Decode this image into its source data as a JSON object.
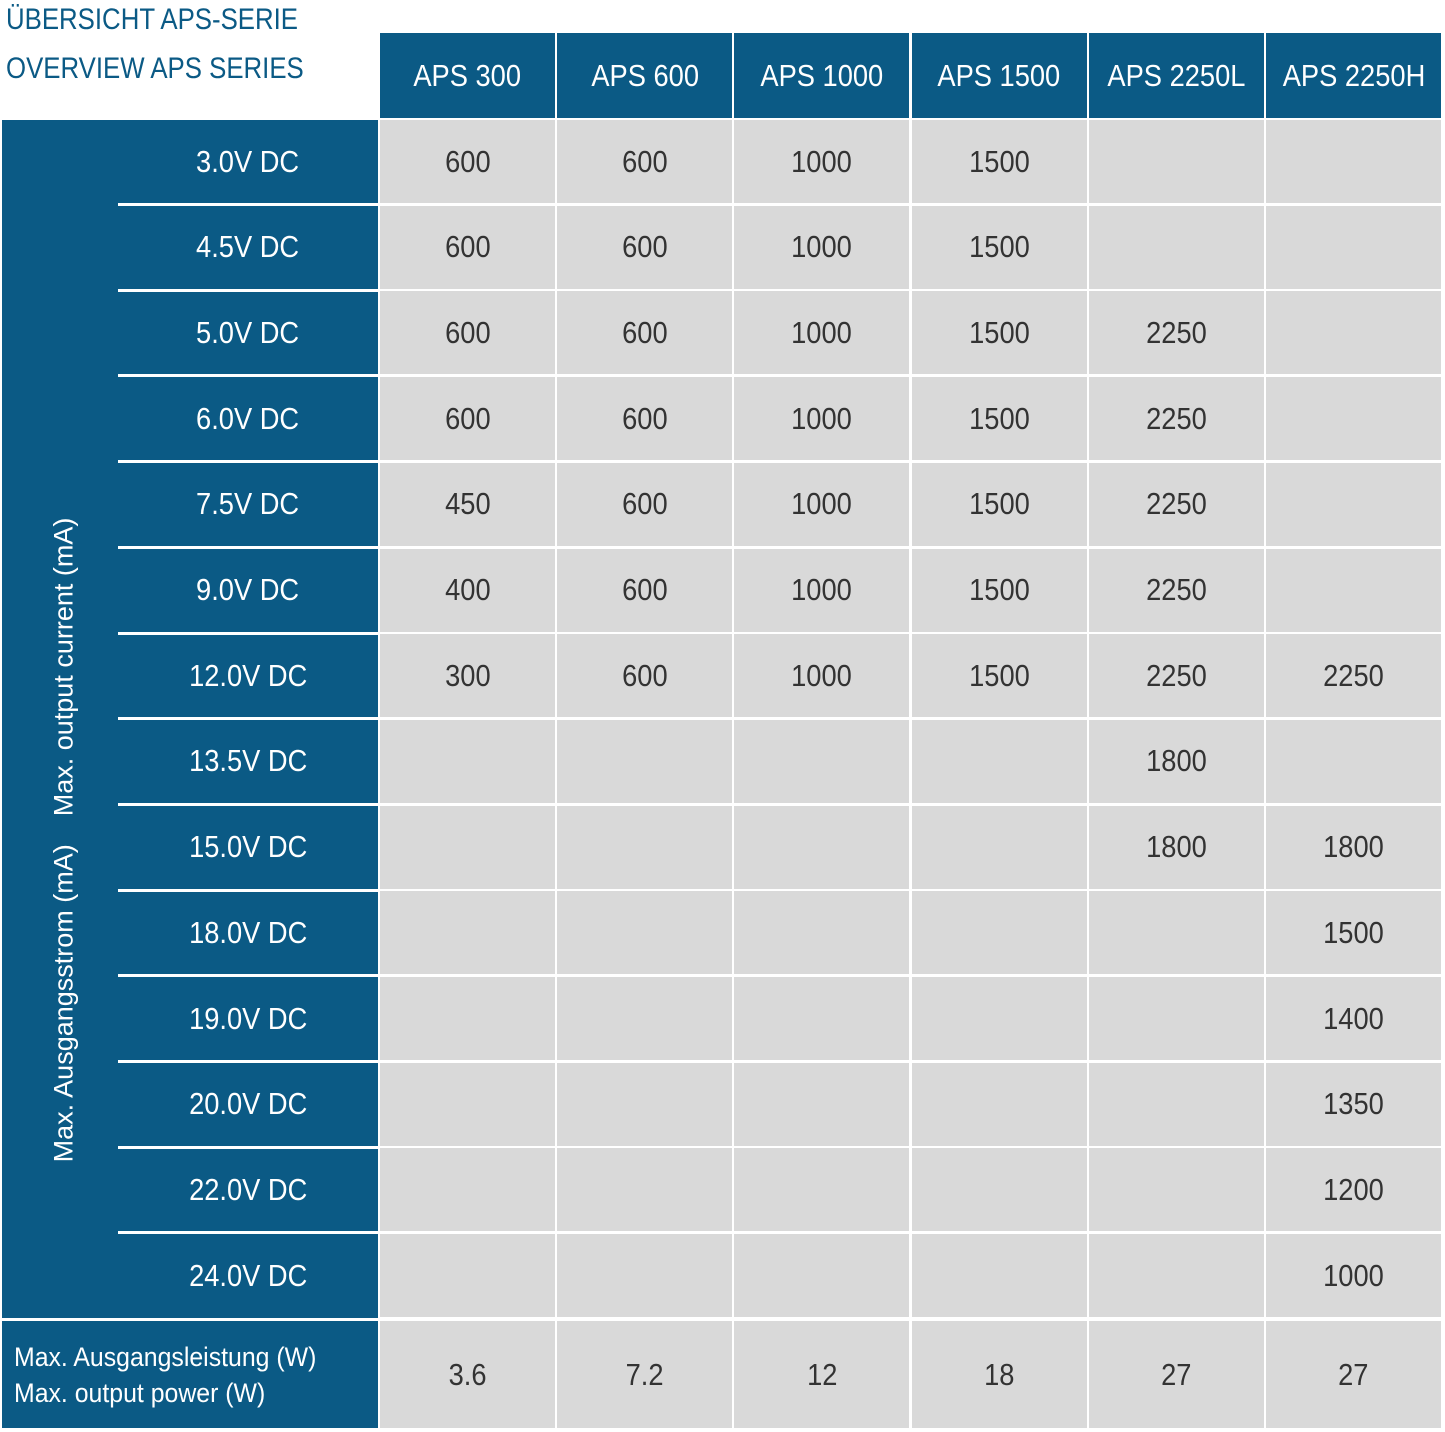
{
  "title": {
    "de": "ÜBERSICHT APS-SERIE",
    "en": "OVERVIEW APS SERIES"
  },
  "colors": {
    "header": "#0b5a85",
    "cell": "#d9d9d9",
    "text": "#333333"
  },
  "row_axis_label": {
    "de": "Max. Ausgangsstrom (mA)",
    "en": "Max. output current (mA)"
  },
  "columns": [
    "APS 300",
    "APS 600",
    "APS 1000",
    "APS 1500",
    "APS 2250L",
    "APS 2250H"
  ],
  "rows": [
    {
      "voltage": "3.0V DC",
      "values": [
        "600",
        "600",
        "1000",
        "1500",
        "",
        ""
      ]
    },
    {
      "voltage": "4.5V DC",
      "values": [
        "600",
        "600",
        "1000",
        "1500",
        "",
        ""
      ]
    },
    {
      "voltage": "5.0V DC",
      "values": [
        "600",
        "600",
        "1000",
        "1500",
        "2250",
        ""
      ]
    },
    {
      "voltage": "6.0V DC",
      "values": [
        "600",
        "600",
        "1000",
        "1500",
        "2250",
        ""
      ]
    },
    {
      "voltage": "7.5V DC",
      "values": [
        "450",
        "600",
        "1000",
        "1500",
        "2250",
        ""
      ]
    },
    {
      "voltage": "9.0V DC",
      "values": [
        "400",
        "600",
        "1000",
        "1500",
        "2250",
        ""
      ]
    },
    {
      "voltage": "12.0V DC",
      "values": [
        "300",
        "600",
        "1000",
        "1500",
        "2250",
        "2250"
      ]
    },
    {
      "voltage": "13.5V DC",
      "values": [
        "",
        "",
        "",
        "",
        "1800",
        ""
      ]
    },
    {
      "voltage": "15.0V DC",
      "values": [
        "",
        "",
        "",
        "",
        "1800",
        "1800"
      ]
    },
    {
      "voltage": "18.0V DC",
      "values": [
        "",
        "",
        "",
        "",
        "",
        "1500"
      ]
    },
    {
      "voltage": "19.0V DC",
      "values": [
        "",
        "",
        "",
        "",
        "",
        "1400"
      ]
    },
    {
      "voltage": "20.0V DC",
      "values": [
        "",
        "",
        "",
        "",
        "",
        "1350"
      ]
    },
    {
      "voltage": "22.0V DC",
      "values": [
        "",
        "",
        "",
        "",
        "",
        "1200"
      ]
    },
    {
      "voltage": "24.0V DC",
      "values": [
        "",
        "",
        "",
        "",
        "",
        "1000"
      ]
    }
  ],
  "footer": {
    "label_de": "Max. Ausgangsleistung (W)",
    "label_en": "Max. output power (W)",
    "values": [
      "3.6",
      "7.2",
      "12",
      "18",
      "27",
      "27"
    ]
  }
}
